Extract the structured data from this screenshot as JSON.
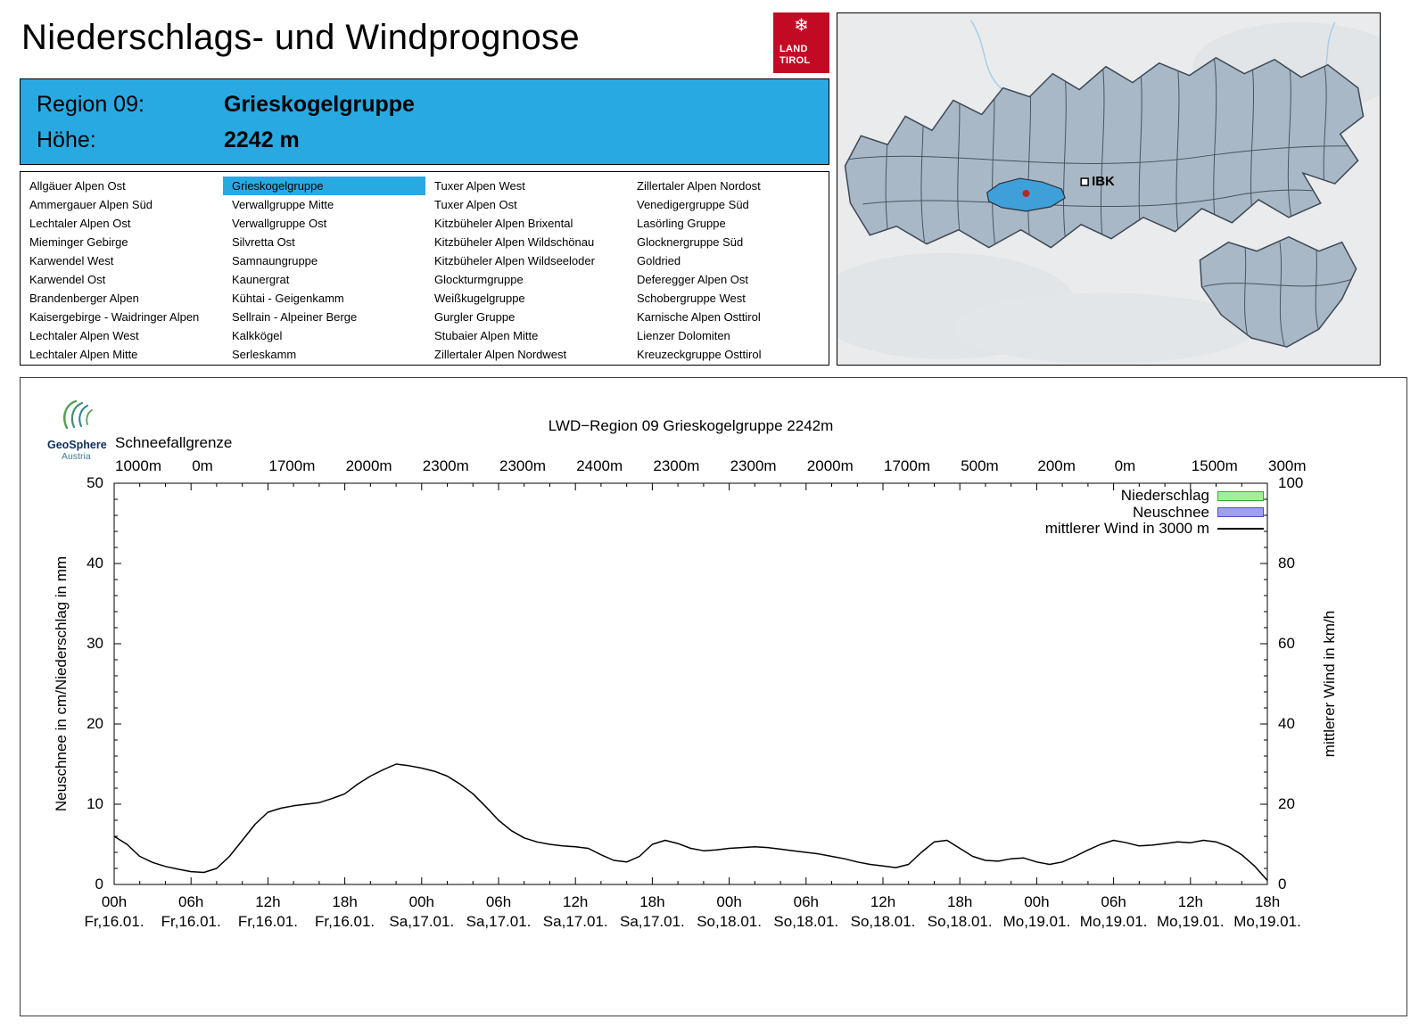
{
  "colors": {
    "accent_blue": "#29a9e2",
    "logo_red": "#c30a25",
    "map_region_fill": "#a9b8c6",
    "map_region_border": "#3c4854",
    "map_selected_fill": "#3f9fd8",
    "map_dot_red": "#c4201e",
    "legend_green_fill": "#9ef09e",
    "legend_green_border": "#37a837",
    "legend_blue_fill": "#9f9ff5",
    "legend_blue_border": "#4d4dc8"
  },
  "header": {
    "title": "Niederschlags- und Windprognose",
    "logo_snowflake_icon": "❄",
    "logo_line1": "LAND",
    "logo_line2": "TIROL"
  },
  "region_header": {
    "region_label": "Region 09:",
    "region_value": "Grieskogelgruppe",
    "height_label": "Höhe:",
    "height_value": "2242 m"
  },
  "region_list": {
    "selected": "Grieskogelgruppe",
    "columns": [
      [
        "Allgäuer Alpen Ost",
        "Ammergauer Alpen Süd",
        "Lechtaler Alpen Ost",
        "Mieminger Gebirge",
        "Karwendel West",
        "Karwendel Ost",
        "Brandenberger Alpen",
        "Kaisergebirge - Waidringer Alpen",
        "Lechtaler Alpen West",
        "Lechtaler Alpen Mitte"
      ],
      [
        "Grieskogelgruppe",
        "Verwallgruppe Mitte",
        "Verwallgruppe Ost",
        "Silvretta Ost",
        "Samnaungruppe",
        "Kaunergrat",
        "Kühtai - Geigenkamm",
        "Sellrain - Alpeiner Berge",
        "Kalkkögel",
        "Serleskamm"
      ],
      [
        "Tuxer Alpen West",
        "Tuxer Alpen Ost",
        "Kitzbüheler Alpen Brixental",
        "Kitzbüheler Alpen Wildschönau",
        "Kitzbüheler Alpen Wildseeloder",
        "Glockturmgruppe",
        "Weißkugelgruppe",
        "Gurgler Gruppe",
        "Stubaier Alpen Mitte",
        "Zillertaler Alpen Nordwest"
      ],
      [
        "Zillertaler Alpen Nordost",
        "Venedigergruppe Süd",
        "Lasörling Gruppe",
        "Glocknergruppe Süd",
        "Goldried",
        "Deferegger Alpen Ost",
        "Schobergruppe West",
        "Karnische Alpen Osttirol",
        "Lienzer Dolomiten",
        "Kreuzeckgruppe Osttirol"
      ]
    ]
  },
  "map": {
    "city_label": "IBK"
  },
  "geosphere": {
    "name": "GeoSphere",
    "subname": "Austria"
  },
  "chart": {
    "title": "LWD−Region 09 Grieskogelgruppe 2242m",
    "snowline_label": "Schneefallgrenze",
    "left_axis_title": "Neuschnee in cm/Niederschlag in mm",
    "right_axis_title": "mittlerer Wind in km/h",
    "legend": [
      {
        "label": "Niederschlag",
        "swatch": "box",
        "fill": "#9ef09e",
        "border": "#37a837"
      },
      {
        "label": "Neuschnee",
        "swatch": "box",
        "fill": "#9f9ff5",
        "border": "#4d4dc8"
      },
      {
        "label": "mittlerer Wind in 3000 m",
        "swatch": "line",
        "color": "#000000"
      }
    ]
  },
  "chart_data": {
    "type": "line",
    "title": "LWD−Region 09 Grieskogelgruppe 2242m",
    "snowline_values": [
      "1000m",
      "0m",
      "1700m",
      "2000m",
      "2300m",
      "2300m",
      "2400m",
      "2300m",
      "2300m",
      "2000m",
      "1700m",
      "500m",
      "200m",
      "0m",
      "1500m",
      "300m"
    ],
    "x_tick_times": [
      "00h",
      "06h",
      "12h",
      "18h",
      "00h",
      "06h",
      "12h",
      "18h",
      "00h",
      "06h",
      "12h",
      "18h",
      "00h",
      "06h",
      "12h",
      "18h"
    ],
    "x_tick_dates": [
      "Fr,16.01.",
      "Fr,16.01.",
      "Fr,16.01.",
      "Fr,16.01.",
      "Sa,17.01.",
      "Sa,17.01.",
      "Sa,17.01.",
      "Sa,17.01.",
      "So,18.01.",
      "So,18.01.",
      "So,18.01.",
      "So,18.01.",
      "Mo,19.01.",
      "Mo,19.01.",
      "Mo,19.01.",
      "Mo,19.01."
    ],
    "x_range_hours": [
      0,
      90
    ],
    "left_axis": {
      "label": "Neuschnee in cm/Niederschlag in mm",
      "ticks": [
        0,
        10,
        20,
        30,
        40,
        50
      ],
      "range": [
        0,
        50
      ]
    },
    "right_axis": {
      "label": "mittlerer Wind in km/h",
      "ticks": [
        0,
        20,
        40,
        60,
        80,
        100
      ],
      "range": [
        0,
        100
      ]
    },
    "grid": false,
    "legend_position": "top-right",
    "series": [
      {
        "name": "Niederschlag",
        "type": "bar",
        "unit": "mm",
        "axis": "left",
        "values": []
      },
      {
        "name": "Neuschnee",
        "type": "bar",
        "unit": "cm",
        "axis": "left",
        "values": []
      },
      {
        "name": "mittlerer Wind in 3000 m",
        "type": "line",
        "unit": "km/h",
        "axis": "right",
        "points": [
          [
            0,
            12
          ],
          [
            1,
            10
          ],
          [
            2,
            7
          ],
          [
            3,
            5.5
          ],
          [
            4,
            4.5
          ],
          [
            5,
            3.8
          ],
          [
            6,
            3.2
          ],
          [
            7,
            3
          ],
          [
            8,
            4
          ],
          [
            9,
            7
          ],
          [
            10,
            11
          ],
          [
            11,
            15
          ],
          [
            12,
            18
          ],
          [
            13,
            19
          ],
          [
            14,
            19.6
          ],
          [
            15,
            20
          ],
          [
            16,
            20.4
          ],
          [
            17,
            21.4
          ],
          [
            18,
            22.6
          ],
          [
            19,
            25
          ],
          [
            20,
            27
          ],
          [
            21,
            28.6
          ],
          [
            22,
            30
          ],
          [
            23,
            29.6
          ],
          [
            24,
            29
          ],
          [
            25,
            28.2
          ],
          [
            26,
            27
          ],
          [
            27,
            25
          ],
          [
            28,
            22.6
          ],
          [
            29,
            19.4
          ],
          [
            30,
            16
          ],
          [
            31,
            13.4
          ],
          [
            32,
            11.6
          ],
          [
            33,
            10.6
          ],
          [
            34,
            10
          ],
          [
            35,
            9.6
          ],
          [
            36,
            9.4
          ],
          [
            37,
            9
          ],
          [
            38,
            7.4
          ],
          [
            39,
            6
          ],
          [
            40,
            5.6
          ],
          [
            41,
            7
          ],
          [
            42,
            10
          ],
          [
            43,
            11
          ],
          [
            44,
            10.2
          ],
          [
            45,
            9
          ],
          [
            46,
            8.4
          ],
          [
            47,
            8.6
          ],
          [
            48,
            9
          ],
          [
            49,
            9.2
          ],
          [
            50,
            9.4
          ],
          [
            51,
            9.2
          ],
          [
            52,
            8.8
          ],
          [
            53,
            8.4
          ],
          [
            54,
            8
          ],
          [
            55,
            7.6
          ],
          [
            56,
            7
          ],
          [
            57,
            6.4
          ],
          [
            58,
            5.6
          ],
          [
            59,
            5
          ],
          [
            60,
            4.6
          ],
          [
            61,
            4.2
          ],
          [
            62,
            5
          ],
          [
            63,
            8
          ],
          [
            64,
            10.6
          ],
          [
            65,
            11
          ],
          [
            66,
            9
          ],
          [
            67,
            7
          ],
          [
            68,
            6
          ],
          [
            69,
            5.8
          ],
          [
            70,
            6.4
          ],
          [
            71,
            6.6
          ],
          [
            72,
            5.6
          ],
          [
            73,
            5
          ],
          [
            74,
            5.6
          ],
          [
            75,
            7
          ],
          [
            76,
            8.6
          ],
          [
            77,
            10
          ],
          [
            78,
            11
          ],
          [
            79,
            10.4
          ],
          [
            80,
            9.6
          ],
          [
            81,
            9.8
          ],
          [
            82,
            10.2
          ],
          [
            83,
            10.6
          ],
          [
            84,
            10.4
          ],
          [
            85,
            11
          ],
          [
            86,
            10.6
          ],
          [
            87,
            9.4
          ],
          [
            88,
            7.4
          ],
          [
            89,
            4.6
          ],
          [
            90,
            1
          ]
        ]
      }
    ]
  }
}
